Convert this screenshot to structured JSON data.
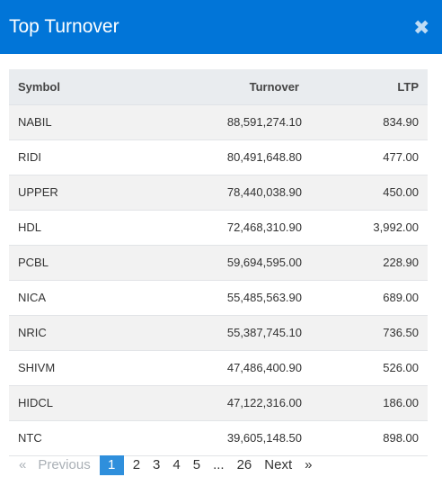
{
  "modal": {
    "title": "Top Turnover",
    "close_icon": "close-icon"
  },
  "table": {
    "columns": [
      "Symbol",
      "Turnover",
      "LTP"
    ],
    "rows": [
      {
        "symbol": "NABIL",
        "turnover": "88,591,274.10",
        "ltp": "834.90"
      },
      {
        "symbol": "RIDI",
        "turnover": "80,491,648.80",
        "ltp": "477.00"
      },
      {
        "symbol": "UPPER",
        "turnover": "78,440,038.90",
        "ltp": "450.00"
      },
      {
        "symbol": "HDL",
        "turnover": "72,468,310.90",
        "ltp": "3,992.00"
      },
      {
        "symbol": "PCBL",
        "turnover": "59,694,595.00",
        "ltp": "228.90"
      },
      {
        "symbol": "NICA",
        "turnover": "55,485,563.90",
        "ltp": "689.00"
      },
      {
        "symbol": "NRIC",
        "turnover": "55,387,745.10",
        "ltp": "736.50"
      },
      {
        "symbol": "SHIVM",
        "turnover": "47,486,400.90",
        "ltp": "526.00"
      },
      {
        "symbol": "HIDCL",
        "turnover": "47,122,316.00",
        "ltp": "186.00"
      },
      {
        "symbol": "NTC",
        "turnover": "39,605,148.50",
        "ltp": "898.00"
      }
    ]
  },
  "pagination": {
    "prev_arrow": "«",
    "prev_label": "Previous",
    "pages": [
      "1",
      "2",
      "3",
      "4",
      "5",
      "...",
      "26"
    ],
    "active_page": "1",
    "next_label": "Next",
    "next_arrow": "»"
  },
  "colors": {
    "header_bg": "#0175d8",
    "active_page_bg": "#2f8fdc"
  }
}
